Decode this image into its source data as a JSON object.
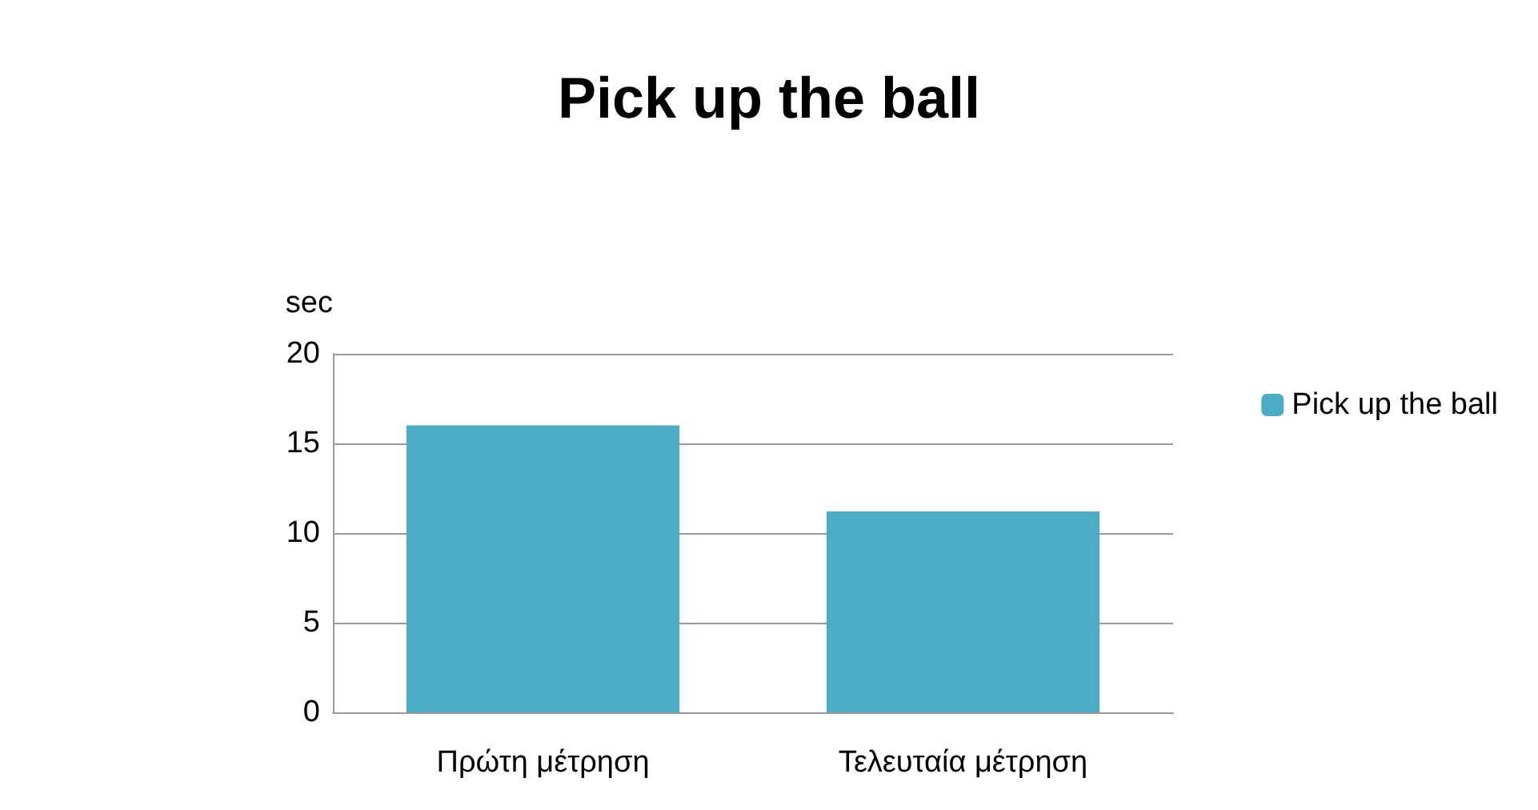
{
  "chart_data": {
    "type": "bar",
    "title": "Pick up the ball",
    "ylabel": "sec",
    "categories": [
      "Πρώτη μέτρηση",
      "Τελευταία μέτρηση"
    ],
    "series": [
      {
        "name": "Pick up the ball",
        "color": "#4bacc6",
        "values": [
          16,
          11.2
        ]
      }
    ],
    "ylim": [
      0,
      20
    ],
    "yticks": [
      0,
      5,
      10,
      15,
      20
    ],
    "grid": "y",
    "legend": "right"
  }
}
